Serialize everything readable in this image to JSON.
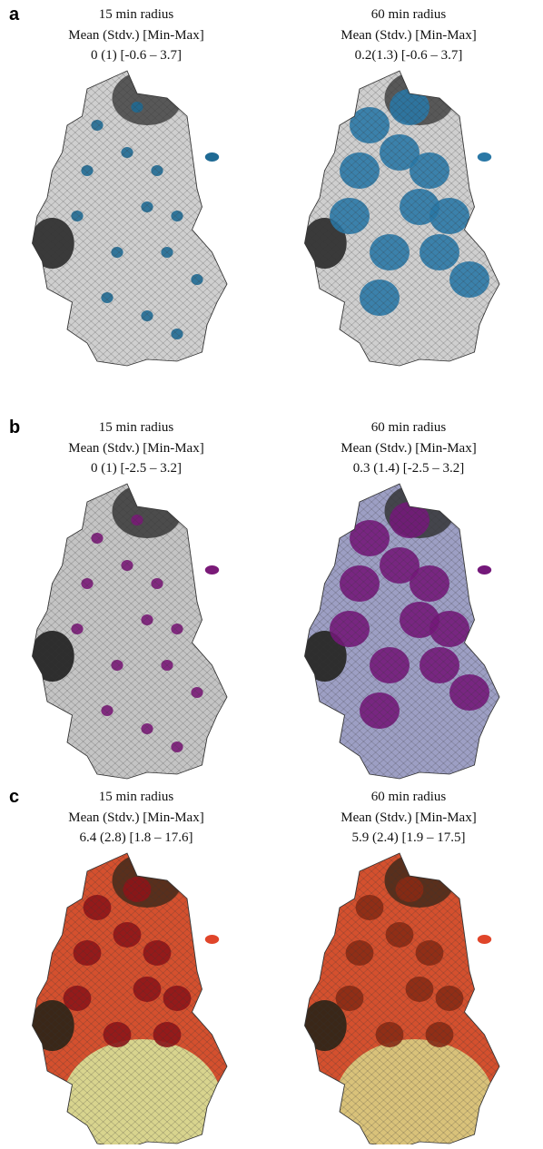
{
  "panels": [
    {
      "label": "a",
      "maps": [
        {
          "title": "15 min radius",
          "subtitle": "Mean (Stdv.) [Min-Max]",
          "stats": "0 (1) [-0.6 – 3.7]"
        },
        {
          "title": "60 min radius",
          "subtitle": "Mean (Stdv.) [Min-Max]",
          "stats": "0.2(1.3) [-0.6 – 3.7]"
        }
      ]
    },
    {
      "label": "b",
      "maps": [
        {
          "title": "15 min radius",
          "subtitle": "Mean (Stdv.) [Min-Max]",
          "stats": "0 (1) [-2.5 – 3.2]"
        },
        {
          "title": "60 min radius",
          "subtitle": "Mean (Stdv.) [Min-Max]",
          "stats": "0.3 (1.4) [-2.5 – 3.2]"
        }
      ]
    },
    {
      "label": "c",
      "maps": [
        {
          "title": "15 min radius",
          "subtitle": "Mean (Stdv.) [Min-Max]",
          "stats": "6.4 (2.8) [1.8 – 17.6]"
        },
        {
          "title": "60 min radius",
          "subtitle": "Mean (Stdv.) [Min-Max]",
          "stats": "5.9 (2.4) [1.9 – 17.5]"
        }
      ]
    }
  ]
}
